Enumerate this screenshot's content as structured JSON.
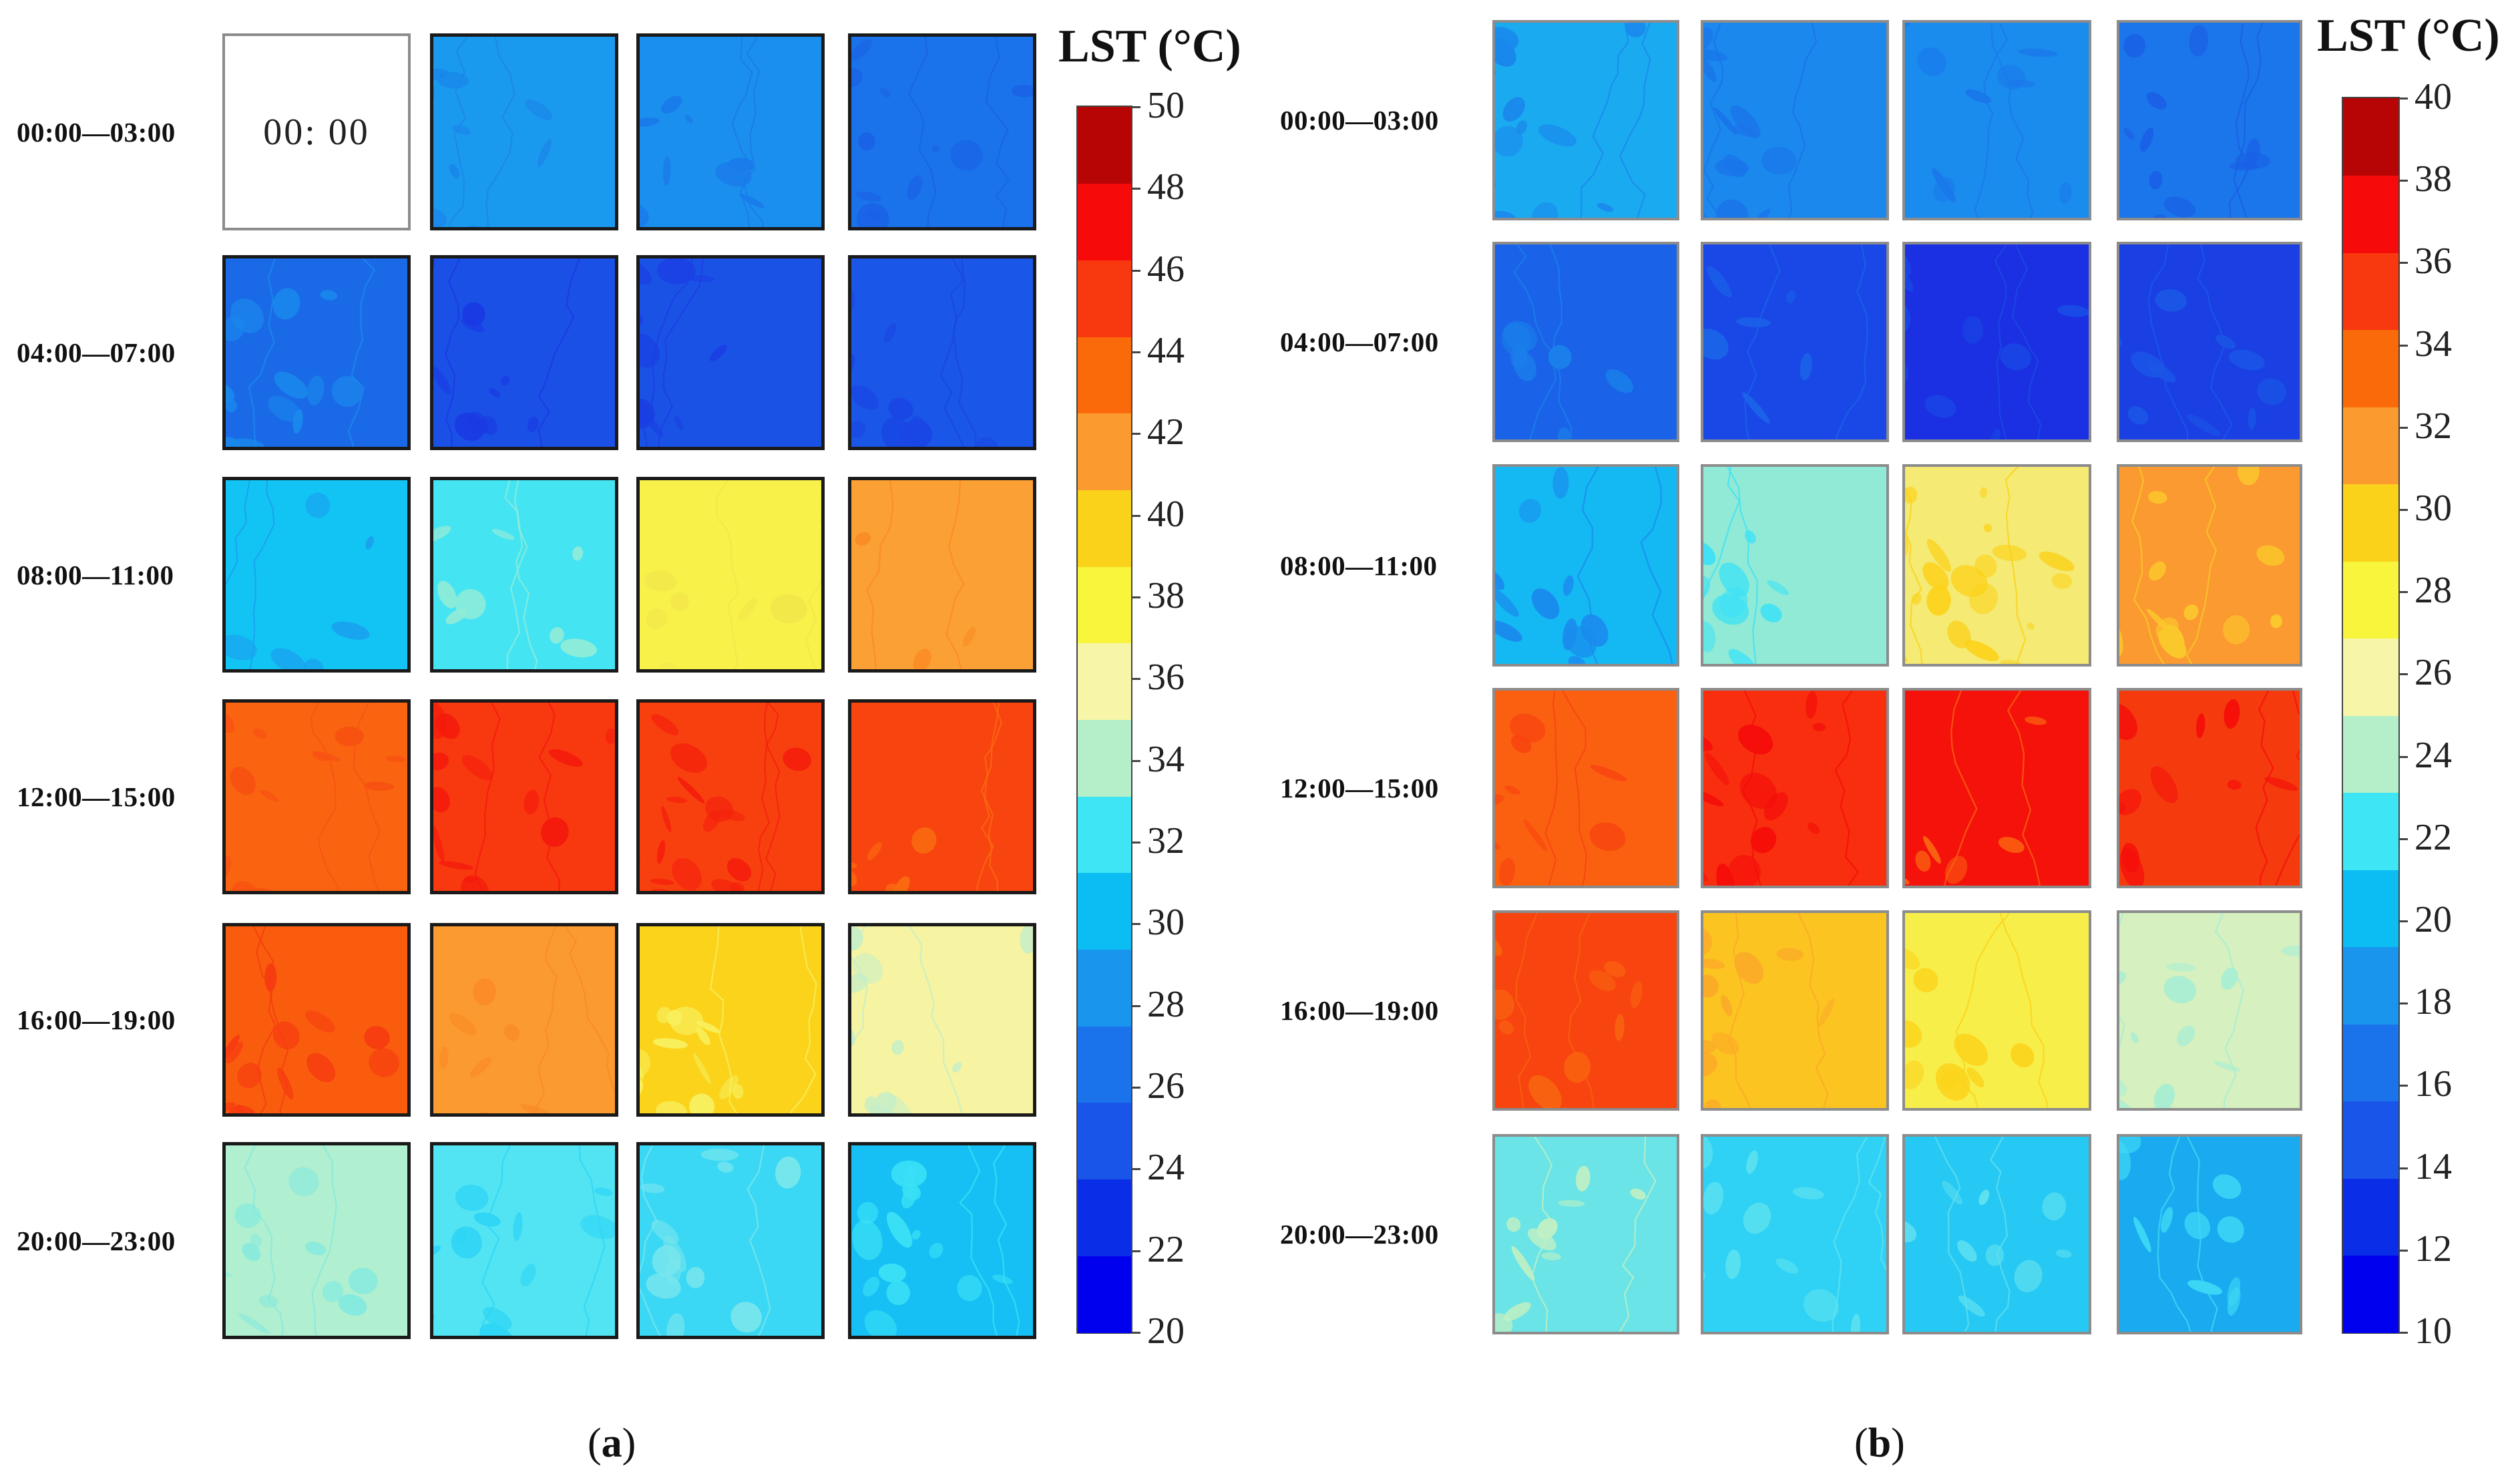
{
  "row_labels": [
    "00:00—03:00",
    "04:00—07:00",
    "08:00—11:00",
    "12:00—15:00",
    "16:00—19:00",
    "20:00—23:00"
  ],
  "panels": [
    {
      "caption": "(a)",
      "caption_letter": "a",
      "legend_title": "LST (°C)",
      "colorbar": {
        "min": 20,
        "max": 50,
        "step": 2,
        "ticks": [
          "50",
          "48",
          "46",
          "44",
          "42",
          "40",
          "38",
          "36",
          "34",
          "32",
          "30",
          "28",
          "26",
          "24",
          "22",
          "20"
        ],
        "colors_low_to_high": [
          "#0000ef",
          "#0a2de8",
          "#1955e8",
          "#1a73ea",
          "#1a95ee",
          "#0bbdf2",
          "#3ee6f5",
          "#b4efc9",
          "#f6f5a8",
          "#f8f53c",
          "#fbd21a",
          "#fb9a2e",
          "#fa6a0a",
          "#f8380f",
          "#f70a0a",
          "#b70404"
        ]
      },
      "clock_text": "00:  00",
      "cells": [
        [
          null,
          {
            "base": "#1a9aee",
            "patch": "#1a85ea",
            "patch_density": 0.25
          },
          {
            "base": "#1a8fee",
            "patch": "#1a7bea",
            "patch_density": 0.25
          },
          {
            "base": "#1a73ea",
            "patch": "#1a62e6",
            "patch_density": 0.55
          }
        ],
        [
          {
            "base": "#1a6ae8",
            "patch": "#1a88ec",
            "patch_density": 0.45
          },
          {
            "base": "#1a50e6",
            "patch": "#1a38e3",
            "patch_density": 0.55
          },
          {
            "base": "#1a52e6",
            "patch": "#1a3ee3",
            "patch_density": 0.45
          },
          {
            "base": "#1a56e7",
            "patch": "#1a46e4",
            "patch_density": 0.45
          }
        ],
        [
          {
            "base": "#12c4f4",
            "patch": "#1a9fee",
            "patch_density": 0.3
          },
          {
            "base": "#45e4f3",
            "patch": "#8fecd8",
            "patch_density": 0.45
          },
          {
            "base": "#f7f14a",
            "patch": "#f3e64a",
            "patch_density": 0.15
          },
          {
            "base": "#fba034",
            "patch": "#fa8a24",
            "patch_density": 0.3
          }
        ],
        [
          {
            "base": "#fa6410",
            "patch": "#f85212",
            "patch_density": 0.3
          },
          {
            "base": "#f8380f",
            "patch": "#f51a0c",
            "patch_density": 0.6
          },
          {
            "base": "#f8400f",
            "patch": "#f5200c",
            "patch_density": 0.6
          },
          {
            "base": "#f8440f",
            "patch": "#fa6a10",
            "patch_density": 0.35
          }
        ],
        [
          {
            "base": "#fa5c0e",
            "patch": "#f63c10",
            "patch_density": 0.5
          },
          {
            "base": "#fb9a30",
            "patch": "#fa8a26",
            "patch_density": 0.3
          },
          {
            "base": "#fbd31a",
            "patch": "#f8f05e",
            "patch_density": 0.55
          },
          {
            "base": "#f6f3a2",
            "patch": "#c4eec8",
            "patch_density": 0.35
          }
        ],
        [
          {
            "base": "#b0efcf",
            "patch": "#86eade",
            "patch_density": 0.45
          },
          {
            "base": "#52e4f3",
            "patch": "#2fd5f5",
            "patch_density": 0.45
          },
          {
            "base": "#3ad8f5",
            "patch": "#7be6ec",
            "patch_density": 0.45
          },
          {
            "base": "#16c0f4",
            "patch": "#3ae0f5",
            "patch_density": 0.55
          }
        ]
      ]
    },
    {
      "caption": "(b)",
      "caption_letter": "b",
      "legend_title": "LST (°C)",
      "colorbar": {
        "min": 10,
        "max": 40,
        "step": 2,
        "ticks": [
          "40",
          "38",
          "36",
          "34",
          "32",
          "30",
          "28",
          "26",
          "24",
          "22",
          "20",
          "18",
          "16",
          "14",
          "12",
          "10"
        ],
        "colors_low_to_high": [
          "#0000ef",
          "#0a2de8",
          "#1955e8",
          "#1a73ea",
          "#1a95ee",
          "#0bbdf2",
          "#3ee6f5",
          "#b4efc9",
          "#f6f5a8",
          "#f8f53c",
          "#fbd21a",
          "#fb9a2e",
          "#fa6a0a",
          "#f8380f",
          "#f70a0a",
          "#b70404"
        ]
      },
      "clock_text": "",
      "cells": [
        [
          {
            "base": "#1aaaf0",
            "patch": "#1a88ec",
            "patch_density": 0.4
          },
          {
            "base": "#1a88ec",
            "patch": "#1a74ea",
            "patch_density": 0.4
          },
          {
            "base": "#1a8cee",
            "patch": "#1a78ea",
            "patch_density": 0.35
          },
          {
            "base": "#1a76ea",
            "patch": "#1a5ee6",
            "patch_density": 0.45
          }
        ],
        [
          {
            "base": "#1a62e8",
            "patch": "#1a80ea",
            "patch_density": 0.4
          },
          {
            "base": "#1a48e6",
            "patch": "#1a62e8",
            "patch_density": 0.4
          },
          {
            "base": "#1a30e2",
            "patch": "#1a4ae6",
            "patch_density": 0.4
          },
          {
            "base": "#1a40e4",
            "patch": "#1a58e6",
            "patch_density": 0.35
          }
        ],
        [
          {
            "base": "#14b8f2",
            "patch": "#1a8cee",
            "patch_density": 0.45
          },
          {
            "base": "#90ead6",
            "patch": "#3ee2f5",
            "patch_density": 0.45
          },
          {
            "base": "#f4ea74",
            "patch": "#fbd21a",
            "patch_density": 0.55
          },
          {
            "base": "#fb9a30",
            "patch": "#fbc82c",
            "patch_density": 0.4
          }
        ],
        [
          {
            "base": "#fa6010",
            "patch": "#f84410",
            "patch_density": 0.45
          },
          {
            "base": "#f82e0e",
            "patch": "#f50e0a",
            "patch_density": 0.55
          },
          {
            "base": "#f5120a",
            "patch": "#fa6212",
            "patch_density": 0.35
          },
          {
            "base": "#f53a0e",
            "patch": "#f5100a",
            "patch_density": 0.55
          }
        ],
        [
          {
            "base": "#f8440f",
            "patch": "#f8620f",
            "patch_density": 0.5
          },
          {
            "base": "#fbc420",
            "patch": "#fbaa28",
            "patch_density": 0.3
          },
          {
            "base": "#f8ee4a",
            "patch": "#fbd21a",
            "patch_density": 0.35
          },
          {
            "base": "#d6f0c0",
            "patch": "#a8eed2",
            "patch_density": 0.45
          }
        ],
        [
          {
            "base": "#6ae4e6",
            "patch": "#bff0c4",
            "patch_density": 0.45
          },
          {
            "base": "#2fd2f5",
            "patch": "#5ee2ef",
            "patch_density": 0.5
          },
          {
            "base": "#26c8f4",
            "patch": "#5ee0f0",
            "patch_density": 0.5
          },
          {
            "base": "#1aaaf0",
            "patch": "#3ed8f5",
            "patch_density": 0.5
          }
        ]
      ]
    }
  ]
}
